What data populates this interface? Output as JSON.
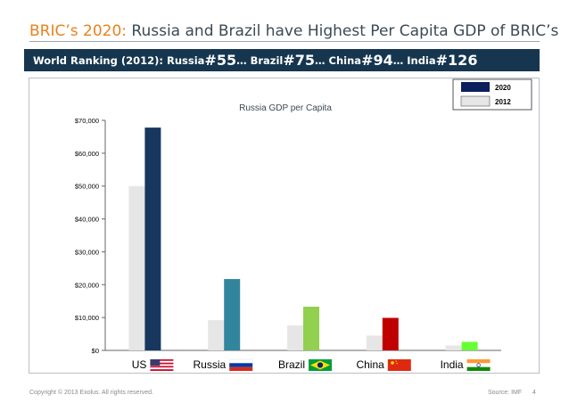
{
  "slide": {
    "title_prefix": "BRIC’s 2020:",
    "title_rest": " Russia and Brazil have Highest Per Capita GDP of BRIC’s",
    "banner": {
      "lead": "World Ranking (2012):  Russia ",
      "russia_rank": "#55",
      "sep1": " … Brazil ",
      "brazil_rank": "#75",
      "sep2": " … China ",
      "china_rank": "#94",
      "sep3": " … India ",
      "india_rank": "#126"
    },
    "copyright": "Copyright © 2013 Exolus. All rights reserved.",
    "source": "Source: IMF",
    "page_number": "4"
  },
  "colors": {
    "accent": "#e8821e",
    "banner_bg": "#163650",
    "bar_2012": "#e6e6e6",
    "US": "#17375e",
    "Russia": "#31859c",
    "Brazil": "#92d050",
    "China": "#c00000",
    "India": "#66ff33"
  },
  "chart_data": {
    "type": "bar",
    "title": "Russia GDP per Capita",
    "categories": [
      "US",
      "Russia",
      "Brazil",
      "China",
      "India"
    ],
    "series": [
      {
        "name": "2012",
        "values": [
          50000,
          9200,
          7600,
          4500,
          1500
        ]
      },
      {
        "name": "2020",
        "values": [
          67800,
          21700,
          13300,
          9900,
          2600
        ]
      }
    ],
    "yticks": [
      "$0",
      "$10,000",
      "$20,000",
      "$30,000",
      "$40,000",
      "$50,000",
      "$60,000",
      "$70,000"
    ],
    "ylim": [
      0,
      70000
    ],
    "legend": [
      "2020",
      "2012"
    ],
    "legend_position": "top-right",
    "xlabel": "",
    "ylabel": ""
  }
}
